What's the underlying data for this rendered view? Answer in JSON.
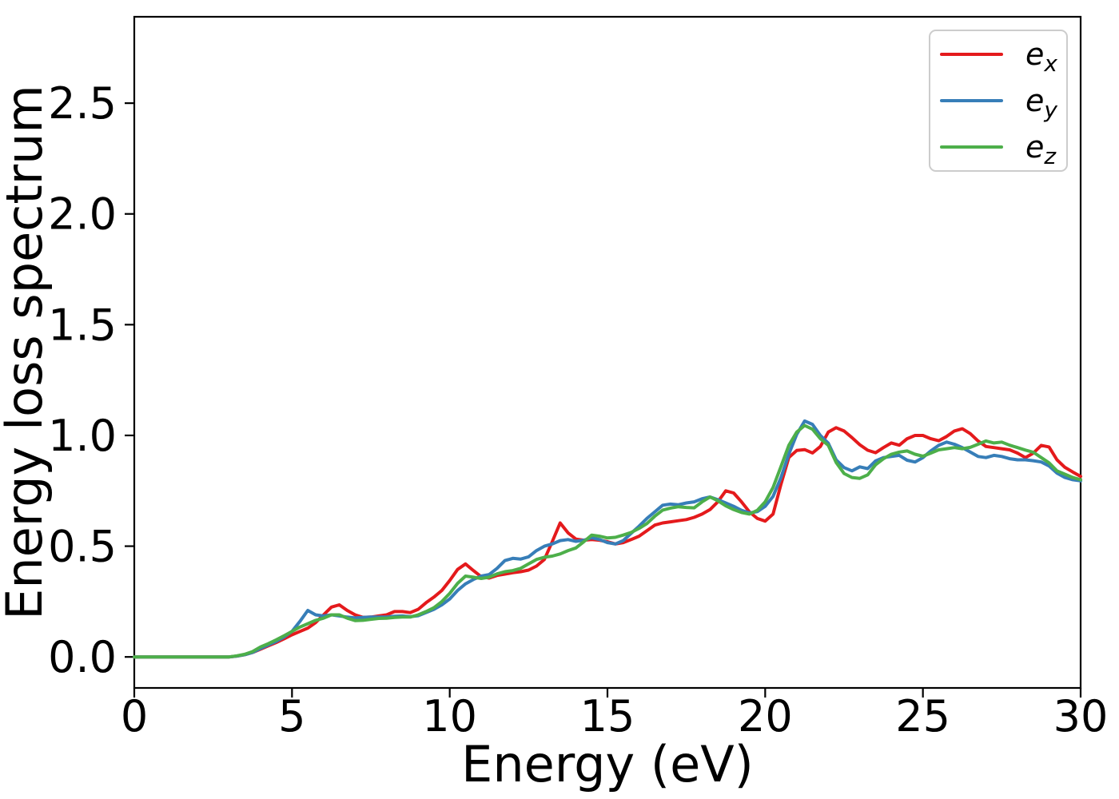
{
  "figure": {
    "background": "#ffffff",
    "frame_color": "#000000"
  },
  "chart_data": {
    "type": "line",
    "title": "",
    "xlabel": "Energy (eV)",
    "ylabel": "Energy loss spectrum",
    "xlim": [
      0,
      30
    ],
    "ylim": [
      -0.14,
      2.89
    ],
    "grid": false,
    "legend_position": "upper right",
    "xticks": [
      {
        "value": 0,
        "label": "0"
      },
      {
        "value": 5,
        "label": "5"
      },
      {
        "value": 10,
        "label": "10"
      },
      {
        "value": 15,
        "label": "15"
      },
      {
        "value": 20,
        "label": "20"
      },
      {
        "value": 25,
        "label": "25"
      },
      {
        "value": 30,
        "label": "30"
      }
    ],
    "yticks": [
      {
        "value": 0.0,
        "label": "0.0"
      },
      {
        "value": 0.5,
        "label": "0.5"
      },
      {
        "value": 1.0,
        "label": "1.0"
      },
      {
        "value": 1.5,
        "label": "1.5"
      },
      {
        "value": 2.0,
        "label": "2.0"
      },
      {
        "value": 2.5,
        "label": "2.5"
      }
    ],
    "x_start": 0,
    "x_step": 0.25,
    "legend_entries": [
      {
        "series": "ex",
        "base": "e",
        "sub": "x"
      },
      {
        "series": "ey",
        "base": "e",
        "sub": "y"
      },
      {
        "series": "ez",
        "base": "e",
        "sub": "z"
      }
    ],
    "series": [
      {
        "id": "ex",
        "name": "e_x",
        "color": "#e41a1c",
        "values": [
          0,
          0,
          0,
          0,
          0,
          0,
          0,
          0,
          0,
          0,
          0,
          0,
          0,
          0.004,
          0.01,
          0.02,
          0.035,
          0.05,
          0.065,
          0.082,
          0.1,
          0.115,
          0.13,
          0.155,
          0.19,
          0.225,
          0.235,
          0.21,
          0.19,
          0.179,
          0.18,
          0.185,
          0.19,
          0.205,
          0.205,
          0.2,
          0.215,
          0.245,
          0.27,
          0.3,
          0.345,
          0.395,
          0.42,
          0.39,
          0.362,
          0.356,
          0.368,
          0.374,
          0.38,
          0.385,
          0.392,
          0.41,
          0.44,
          0.52,
          0.605,
          0.56,
          0.532,
          0.527,
          0.53,
          0.527,
          0.52,
          0.51,
          0.516,
          0.53,
          0.545,
          0.57,
          0.595,
          0.605,
          0.61,
          0.615,
          0.62,
          0.63,
          0.645,
          0.665,
          0.7,
          0.75,
          0.74,
          0.7,
          0.655,
          0.625,
          0.613,
          0.645,
          0.78,
          0.9,
          0.932,
          0.936,
          0.921,
          0.95,
          1.015,
          1.035,
          1.02,
          0.99,
          0.958,
          0.933,
          0.922,
          0.945,
          0.966,
          0.956,
          0.985,
          1.0,
          1.0,
          0.985,
          0.976,
          0.995,
          1.02,
          1.03,
          1.008,
          0.975,
          0.95,
          0.945,
          0.94,
          0.935,
          0.92,
          0.9,
          0.92,
          0.955,
          0.948,
          0.89,
          0.856,
          0.835,
          0.815
        ]
      },
      {
        "id": "ey",
        "name": "e_y",
        "color": "#377eb8",
        "values": [
          0,
          0,
          0,
          0,
          0,
          0,
          0,
          0,
          0,
          0,
          0,
          0,
          0,
          0.004,
          0.01,
          0.02,
          0.038,
          0.054,
          0.07,
          0.09,
          0.115,
          0.16,
          0.21,
          0.19,
          0.185,
          0.19,
          0.185,
          0.18,
          0.176,
          0.178,
          0.18,
          0.18,
          0.18,
          0.184,
          0.185,
          0.182,
          0.186,
          0.2,
          0.215,
          0.235,
          0.262,
          0.3,
          0.33,
          0.35,
          0.365,
          0.372,
          0.4,
          0.435,
          0.445,
          0.442,
          0.452,
          0.48,
          0.5,
          0.51,
          0.525,
          0.53,
          0.522,
          0.527,
          0.538,
          0.53,
          0.516,
          0.51,
          0.525,
          0.558,
          0.59,
          0.625,
          0.655,
          0.685,
          0.69,
          0.687,
          0.695,
          0.7,
          0.714,
          0.722,
          0.71,
          0.695,
          0.68,
          0.662,
          0.65,
          0.656,
          0.68,
          0.725,
          0.81,
          0.915,
          1.005,
          1.065,
          1.05,
          1.0,
          0.965,
          0.89,
          0.855,
          0.84,
          0.858,
          0.85,
          0.885,
          0.9,
          0.905,
          0.91,
          0.888,
          0.88,
          0.9,
          0.93,
          0.955,
          0.97,
          0.96,
          0.945,
          0.925,
          0.905,
          0.9,
          0.91,
          0.905,
          0.895,
          0.89,
          0.89,
          0.886,
          0.88,
          0.862,
          0.83,
          0.81,
          0.8,
          0.795
        ]
      },
      {
        "id": "ez",
        "name": "e_z",
        "color": "#4daf4a",
        "values": [
          0,
          0,
          0,
          0,
          0,
          0,
          0,
          0,
          0,
          0,
          0,
          0,
          0,
          0.005,
          0.012,
          0.024,
          0.045,
          0.06,
          0.077,
          0.096,
          0.115,
          0.135,
          0.15,
          0.165,
          0.175,
          0.19,
          0.19,
          0.175,
          0.164,
          0.165,
          0.17,
          0.174,
          0.175,
          0.178,
          0.18,
          0.18,
          0.19,
          0.205,
          0.222,
          0.25,
          0.287,
          0.332,
          0.365,
          0.36,
          0.354,
          0.36,
          0.375,
          0.385,
          0.39,
          0.4,
          0.42,
          0.44,
          0.45,
          0.455,
          0.465,
          0.48,
          0.492,
          0.52,
          0.55,
          0.545,
          0.537,
          0.54,
          0.55,
          0.562,
          0.58,
          0.602,
          0.635,
          0.663,
          0.672,
          0.678,
          0.675,
          0.673,
          0.7,
          0.722,
          0.705,
          0.682,
          0.665,
          0.652,
          0.645,
          0.662,
          0.7,
          0.765,
          0.86,
          0.955,
          1.015,
          1.045,
          1.028,
          0.985,
          0.955,
          0.878,
          0.828,
          0.81,
          0.806,
          0.822,
          0.868,
          0.895,
          0.915,
          0.925,
          0.93,
          0.915,
          0.906,
          0.92,
          0.935,
          0.94,
          0.945,
          0.94,
          0.946,
          0.96,
          0.975,
          0.966,
          0.97,
          0.956,
          0.945,
          0.934,
          0.924,
          0.9,
          0.876,
          0.84,
          0.825,
          0.81,
          0.8
        ]
      }
    ]
  }
}
